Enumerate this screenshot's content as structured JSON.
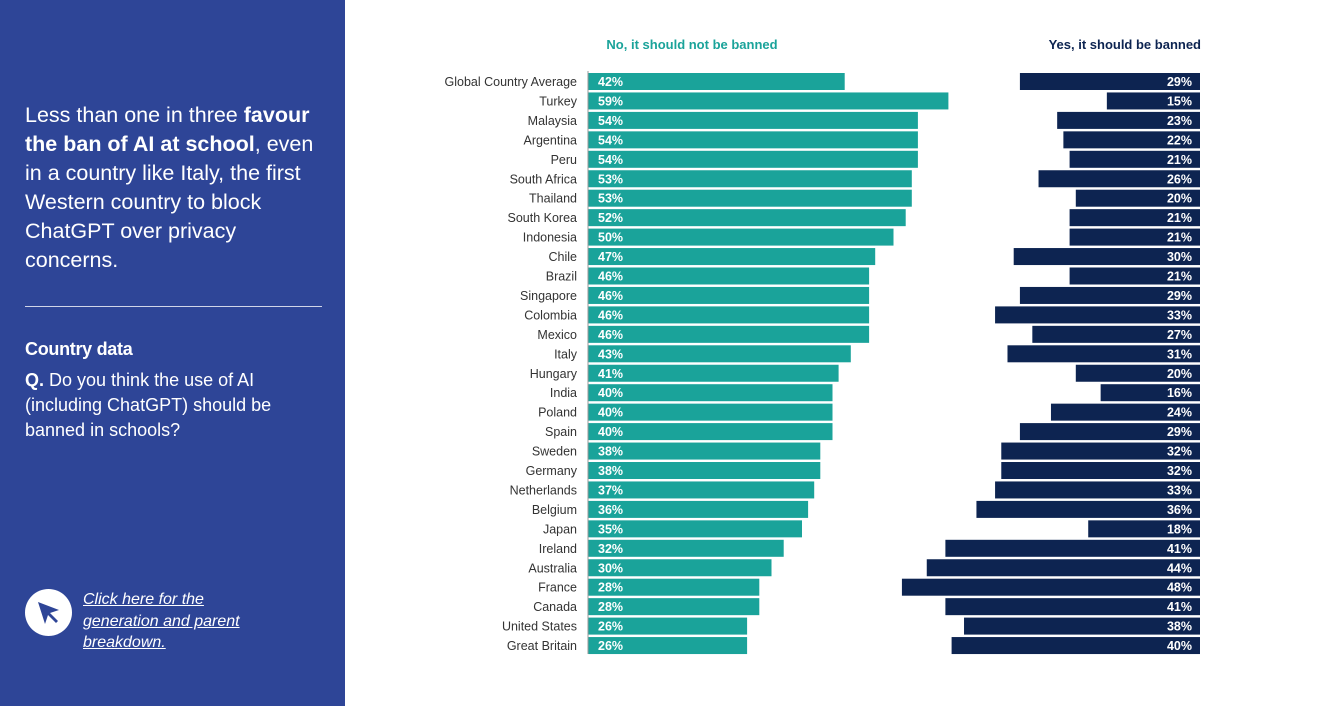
{
  "sidebar": {
    "headline_parts": [
      {
        "text": "Less than one in three ",
        "bold": false
      },
      {
        "text": "favour the ban of AI at school",
        "bold": true
      },
      {
        "text": ", even in a country like Italy, the first Western country to block ChatGPT over privacy concerns.",
        "bold": false
      }
    ],
    "section_title": "Country data",
    "question_prefix": "Q.",
    "question_text": " Do you think the use of AI (including ChatGPT) should be banned in schools?",
    "cta_text": "Click here for the generation and parent breakdown."
  },
  "colors": {
    "sidebar_bg": "#2e4597",
    "no_bar": "#1aa39a",
    "yes_bar": "#0d2451"
  },
  "chart_data": {
    "type": "bar",
    "orientation": "horizontal-diverging",
    "value_suffix": "%",
    "categories": [
      "Global Country Average",
      "Turkey",
      "Malaysia",
      "Argentina",
      "Peru",
      "South Africa",
      "Thailand",
      "South Korea",
      "Indonesia",
      "Chile",
      "Brazil",
      "Singapore",
      "Colombia",
      "Mexico",
      "Italy",
      "Hungary",
      "India",
      "Poland",
      "Spain",
      "Sweden",
      "Germany",
      "Netherlands",
      "Belgium",
      "Japan",
      "Ireland",
      "Australia",
      "France",
      "Canada",
      "United States",
      "Great Britain"
    ],
    "series": [
      {
        "name": "No, it should not be banned",
        "color": "#1aa39a",
        "values": [
          42,
          59,
          54,
          54,
          54,
          53,
          53,
          52,
          50,
          47,
          46,
          46,
          46,
          46,
          43,
          41,
          40,
          40,
          40,
          38,
          38,
          37,
          36,
          35,
          32,
          30,
          28,
          28,
          26,
          26
        ]
      },
      {
        "name": "Yes, it should be banned",
        "color": "#0d2451",
        "values": [
          29,
          15,
          23,
          22,
          21,
          26,
          20,
          21,
          21,
          30,
          21,
          29,
          33,
          27,
          31,
          20,
          16,
          24,
          29,
          32,
          32,
          33,
          36,
          18,
          41,
          44,
          48,
          41,
          38,
          40
        ]
      }
    ]
  }
}
